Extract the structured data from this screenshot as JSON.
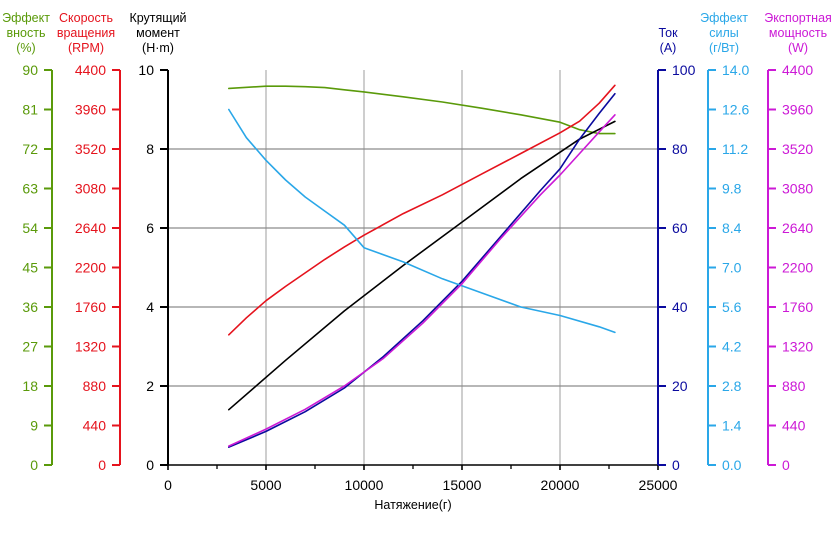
{
  "chart_data": {
    "type": "line",
    "grid": true,
    "x_axis": {
      "title": "Натяжение(г)",
      "min": 0,
      "max": 25000,
      "ticks": [
        "0",
        "5000",
        "10000",
        "15000",
        "20000",
        "25000"
      ],
      "color": "#000000"
    },
    "y_axes": [
      {
        "id": "efficiency_pct",
        "title": [
          "Эффект",
          "вность",
          "(%)"
        ],
        "min": 0,
        "max": 90,
        "ticks": [
          "0",
          "9",
          "18",
          "27",
          "36",
          "45",
          "54",
          "63",
          "72",
          "81",
          "90"
        ],
        "color": "#5a9a0a"
      },
      {
        "id": "speed",
        "title": [
          "Скорость",
          "вращения",
          "(RPM)"
        ],
        "min": 0,
        "max": 4400,
        "ticks": [
          "0",
          "440",
          "880",
          "1320",
          "1760",
          "2200",
          "2640",
          "3080",
          "3520",
          "3960",
          "4400"
        ],
        "color": "#e5131d"
      },
      {
        "id": "torque",
        "title": [
          "Крутящий",
          "момент",
          "(H·m)"
        ],
        "min": 0,
        "max": 10,
        "ticks": [
          "0",
          "2",
          "4",
          "6",
          "8",
          "10"
        ],
        "color": "#000000"
      },
      {
        "id": "current",
        "title": [
          "Ток",
          "(A)"
        ],
        "min": 0,
        "max": 100,
        "ticks": [
          "0",
          "20",
          "40",
          "60",
          "80",
          "100"
        ],
        "color": "#0a0a9e"
      },
      {
        "id": "force_efficiency",
        "title": [
          "Эффект",
          "силы",
          "(г/Вт)"
        ],
        "min": 0,
        "max": 14,
        "ticks": [
          "0.0",
          "1.4",
          "2.8",
          "4.2",
          "5.6",
          "7.0",
          "8.4",
          "9.8",
          "11.2",
          "12.6",
          "14.0"
        ],
        "color": "#2aa7e8"
      },
      {
        "id": "power",
        "title": [
          "Экспортная",
          "мощность",
          "(W)"
        ],
        "min": 0,
        "max": 4400,
        "ticks": [
          "0",
          "440",
          "880",
          "1320",
          "1760",
          "2200",
          "2640",
          "3080",
          "3520",
          "3960",
          "4400"
        ],
        "color": "#cc19d6"
      }
    ],
    "series": [
      {
        "axis": "efficiency_pct",
        "color": "#5a9a0a",
        "x": [
          3100,
          5000,
          6000,
          7000,
          8000,
          9000,
          10000,
          12000,
          14000,
          16000,
          18000,
          20000,
          21000,
          22000,
          22800
        ],
        "y": [
          85.8,
          86.3,
          86.3,
          86.2,
          86.0,
          85.5,
          85.0,
          83.9,
          82.7,
          81.3,
          79.8,
          78.1,
          76.4,
          75.5,
          75.5
        ]
      },
      {
        "axis": "speed",
        "color": "#e5131d",
        "x": [
          3100,
          4000,
          5000,
          6000,
          7000,
          8000,
          9000,
          10000,
          12000,
          14000,
          16000,
          18000,
          20000,
          21000,
          22000,
          22800
        ],
        "y": [
          1450,
          1640,
          1830,
          1990,
          2140,
          2290,
          2430,
          2560,
          2800,
          3010,
          3240,
          3470,
          3700,
          3830,
          4030,
          4230
        ]
      },
      {
        "axis": "torque",
        "color": "#000000",
        "x": [
          3100,
          6000,
          9000,
          12000,
          15000,
          18000,
          21000,
          22800
        ],
        "y": [
          1.4,
          2.65,
          3.9,
          5.05,
          6.15,
          7.25,
          8.25,
          8.7
        ]
      },
      {
        "axis": "current",
        "color": "#0a0a9e",
        "x": [
          3100,
          5000,
          7000,
          9000,
          11000,
          13000,
          15000,
          17000,
          19000,
          20000,
          21000,
          22000,
          22800
        ],
        "y": [
          4.5,
          8.5,
          13.5,
          19.5,
          27.5,
          36.5,
          46.5,
          58.0,
          69.5,
          75.0,
          82.5,
          89.0,
          94.0
        ]
      },
      {
        "axis": "force_efficiency",
        "color": "#2aa7e8",
        "x": [
          3100,
          4000,
          5000,
          6000,
          7000,
          8000,
          9000,
          10000,
          12000,
          14000,
          16000,
          18000,
          20000,
          22000,
          22800
        ],
        "y": [
          12.6,
          11.6,
          10.8,
          10.1,
          9.5,
          9.0,
          8.5,
          7.7,
          7.2,
          6.6,
          6.1,
          5.6,
          5.3,
          4.9,
          4.7
        ]
      },
      {
        "axis": "power",
        "color": "#cc19d6",
        "x": [
          3100,
          5000,
          7000,
          9000,
          11000,
          13000,
          15000,
          17000,
          19000,
          20000,
          21000,
          22000,
          22800
        ],
        "y": [
          210,
          400,
          620,
          880,
          1190,
          1580,
          2020,
          2530,
          3010,
          3230,
          3470,
          3710,
          3900
        ]
      }
    ]
  }
}
